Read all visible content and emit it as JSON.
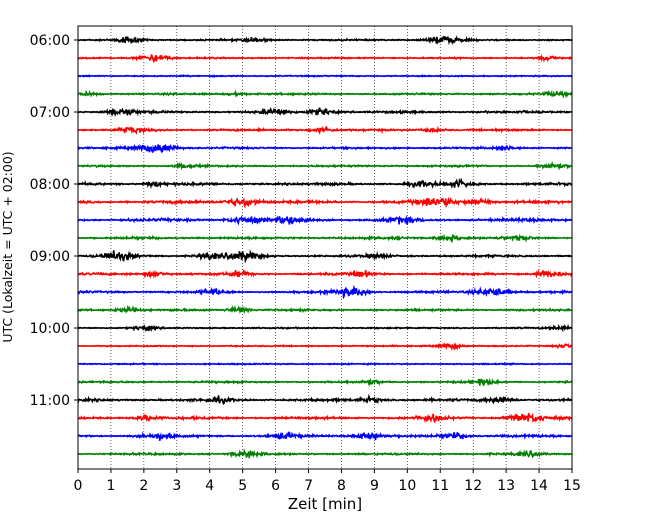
{
  "chart_data": {
    "type": "line",
    "subtype": "helicorder seismogram",
    "title": "",
    "xlabel": "Zeit  [min]",
    "ylabel": "UTC (Lokalzeit = UTC + 02:00)",
    "xlim": [
      0,
      15
    ],
    "x_ticks": [
      "0",
      "1",
      "2",
      "3",
      "4",
      "5",
      "6",
      "7",
      "8",
      "9",
      "10",
      "11",
      "12",
      "13",
      "14",
      "15"
    ],
    "y_ticks": [
      "06:00",
      "07:00",
      "08:00",
      "09:00",
      "10:00",
      "11:00"
    ],
    "grid": "vertical dotted lines at each minute",
    "trace_minutes": 15,
    "traces_per_hour": 4,
    "color_cycle": [
      "#000000",
      "#ff0000",
      "#0000ff",
      "#008000"
    ],
    "traces": [
      {
        "start": "06:00",
        "color": "black",
        "activity": 0.25,
        "bursts": [
          [
            1.5,
            0.6
          ],
          [
            5.4,
            0.5
          ],
          [
            11.1,
            0.8
          ]
        ]
      },
      {
        "start": "06:15",
        "color": "red",
        "activity": 0.2,
        "bursts": [
          [
            2.3,
            0.8
          ],
          [
            14.2,
            0.4
          ]
        ]
      },
      {
        "start": "06:30",
        "color": "blue",
        "activity": 0.15,
        "bursts": []
      },
      {
        "start": "06:45",
        "color": "green",
        "activity": 0.35,
        "bursts": [
          [
            0.2,
            0.4
          ],
          [
            4.8,
            0.3
          ],
          [
            14.5,
            0.4
          ]
        ]
      },
      {
        "start": "07:00",
        "color": "black",
        "activity": 0.5,
        "bursts": [
          [
            1.3,
            0.7
          ],
          [
            6.0,
            0.6
          ],
          [
            7.4,
            0.6
          ]
        ]
      },
      {
        "start": "07:15",
        "color": "red",
        "activity": 0.4,
        "bursts": [
          [
            1.6,
            0.5
          ],
          [
            7.4,
            0.5
          ],
          [
            10.8,
            0.4
          ]
        ]
      },
      {
        "start": "07:30",
        "color": "blue",
        "activity": 0.35,
        "bursts": [
          [
            2.4,
            1.0
          ],
          [
            13.0,
            0.4
          ]
        ]
      },
      {
        "start": "07:45",
        "color": "green",
        "activity": 0.35,
        "bursts": [
          [
            3.2,
            0.4
          ],
          [
            14.4,
            0.5
          ]
        ]
      },
      {
        "start": "08:00",
        "color": "black",
        "activity": 0.55,
        "bursts": [
          [
            2.3,
            0.4
          ],
          [
            10.4,
            0.5
          ],
          [
            11.6,
            0.6
          ]
        ]
      },
      {
        "start": "08:15",
        "color": "red",
        "activity": 0.65,
        "bursts": [
          [
            5.0,
            0.9
          ],
          [
            10.9,
            1.0
          ],
          [
            12.2,
            0.6
          ]
        ]
      },
      {
        "start": "08:30",
        "color": "blue",
        "activity": 0.7,
        "bursts": [
          [
            5.0,
            0.7
          ],
          [
            6.5,
            0.8
          ],
          [
            9.8,
            0.6
          ]
        ]
      },
      {
        "start": "08:45",
        "color": "green",
        "activity": 0.5,
        "bursts": [
          [
            11.3,
            0.6
          ],
          [
            13.4,
            0.4
          ]
        ]
      },
      {
        "start": "09:00",
        "color": "black",
        "activity": 0.45,
        "bursts": [
          [
            1.2,
            0.9
          ],
          [
            4.0,
            0.6
          ],
          [
            5.0,
            0.9
          ],
          [
            9.1,
            0.4
          ]
        ]
      },
      {
        "start": "09:15",
        "color": "red",
        "activity": 0.45,
        "bursts": [
          [
            2.3,
            0.5
          ],
          [
            4.9,
            0.5
          ],
          [
            8.7,
            0.5
          ],
          [
            14.3,
            0.6
          ]
        ]
      },
      {
        "start": "09:30",
        "color": "blue",
        "activity": 0.45,
        "bursts": [
          [
            4.1,
            0.5
          ],
          [
            8.3,
            0.9
          ],
          [
            12.6,
            0.9
          ]
        ]
      },
      {
        "start": "09:45",
        "color": "green",
        "activity": 0.4,
        "bursts": [
          [
            1.5,
            0.5
          ],
          [
            4.9,
            0.5
          ]
        ]
      },
      {
        "start": "10:00",
        "color": "black",
        "activity": 0.2,
        "bursts": [
          [
            2.0,
            0.4
          ],
          [
            14.6,
            0.4
          ]
        ]
      },
      {
        "start": "10:15",
        "color": "red",
        "activity": 0.15,
        "bursts": [
          [
            11.3,
            0.5
          ],
          [
            14.8,
            0.4
          ]
        ]
      },
      {
        "start": "10:30",
        "color": "blue",
        "activity": 0.15,
        "bursts": []
      },
      {
        "start": "10:45",
        "color": "green",
        "activity": 0.35,
        "bursts": [
          [
            8.9,
            0.4
          ],
          [
            12.3,
            0.5
          ]
        ]
      },
      {
        "start": "11:00",
        "color": "black",
        "activity": 0.55,
        "bursts": [
          [
            4.3,
            0.5
          ],
          [
            8.9,
            0.5
          ],
          [
            12.8,
            0.6
          ]
        ]
      },
      {
        "start": "11:15",
        "color": "red",
        "activity": 0.55,
        "bursts": [
          [
            2.1,
            0.5
          ],
          [
            10.7,
            0.6
          ],
          [
            13.6,
            0.9
          ]
        ]
      },
      {
        "start": "11:30",
        "color": "blue",
        "activity": 0.55,
        "bursts": [
          [
            2.5,
            0.6
          ],
          [
            6.3,
            0.5
          ],
          [
            8.8,
            0.7
          ],
          [
            11.5,
            0.6
          ]
        ]
      },
      {
        "start": "11:45",
        "color": "green",
        "activity": 0.4,
        "bursts": [
          [
            5.1,
            0.6
          ],
          [
            13.7,
            0.5
          ]
        ]
      }
    ]
  }
}
